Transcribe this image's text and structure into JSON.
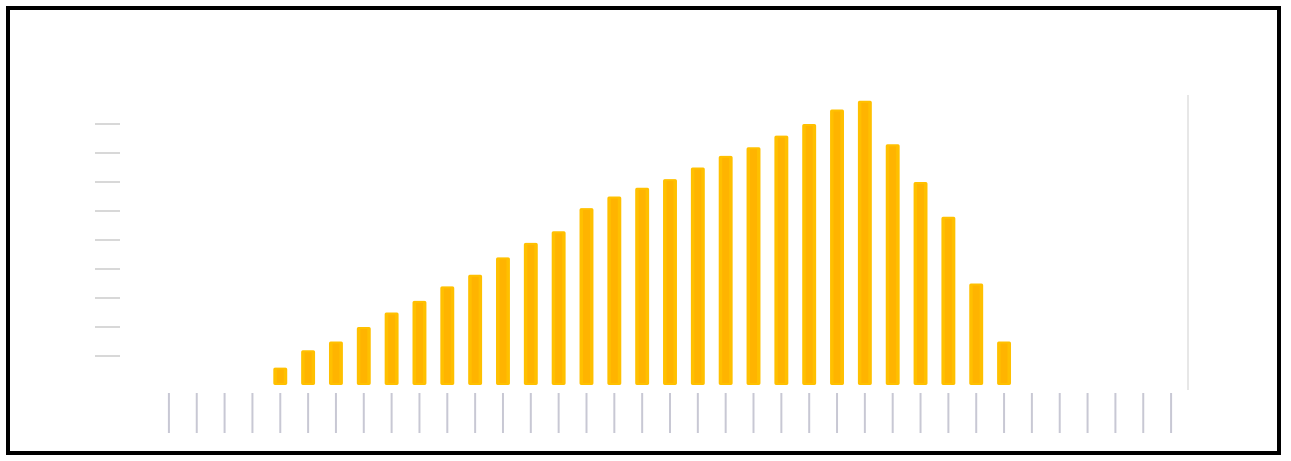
{
  "colors": {
    "bar": "#ffc000",
    "bar_core": "#ffab00",
    "axis": "#cfcfcf",
    "frame": "#000000",
    "tick_text": "#b8b8b8"
  },
  "chart_data": {
    "type": "bar",
    "title": "",
    "xlabel": "",
    "ylabel": "",
    "grid": false,
    "legend": "none",
    "ylim": [
      0,
      100
    ],
    "categories": [
      "1",
      "2",
      "3",
      "4",
      "5",
      "6",
      "7",
      "8",
      "9",
      "10",
      "11",
      "12",
      "13",
      "14",
      "15",
      "16",
      "17",
      "18",
      "19",
      "20",
      "21",
      "22",
      "23",
      "24",
      "25",
      "26",
      "27",
      "28",
      "29",
      "30",
      "31",
      "32",
      "33",
      "34",
      "35",
      "36",
      "37"
    ],
    "values": [
      0,
      0,
      0,
      0,
      6,
      12,
      15,
      20,
      25,
      29,
      34,
      38,
      44,
      49,
      53,
      61,
      65,
      68,
      71,
      75,
      79,
      82,
      86,
      90,
      95,
      98,
      83,
      70,
      58,
      35,
      15,
      0,
      0,
      0,
      0,
      0,
      0
    ]
  }
}
